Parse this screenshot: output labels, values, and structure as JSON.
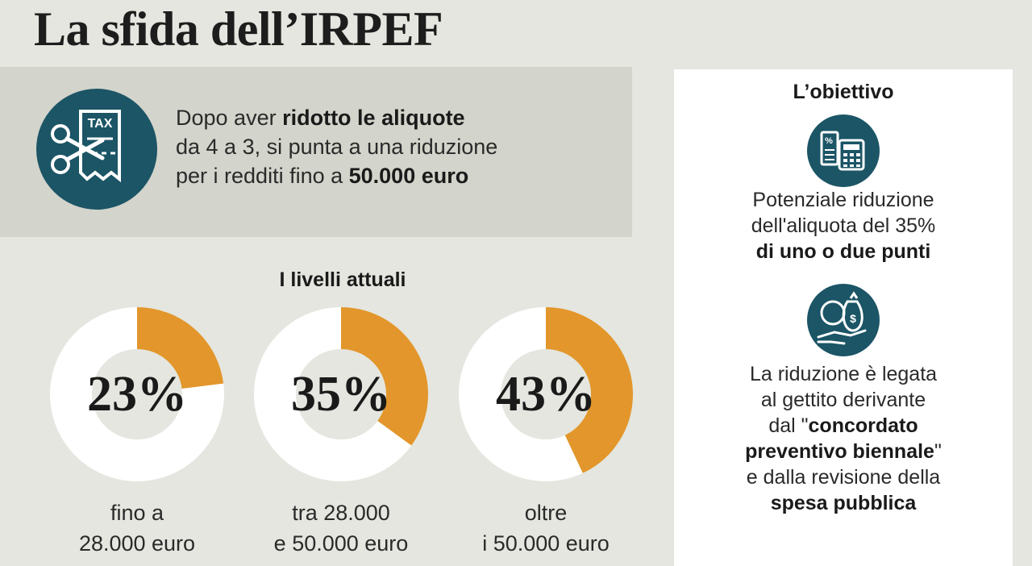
{
  "header": {
    "title": "La sfida dell’IRPEF"
  },
  "intro": {
    "badge_text": "TAX",
    "line1_pre": "Dopo aver ",
    "line1_bold": "ridotto le aliquote",
    "line2": "da 4 a 3, si punta a una riduzione",
    "line3_pre": "per i redditi fino a ",
    "line3_bold": "50.000 euro"
  },
  "levels": {
    "title": "I livelli attuali"
  },
  "chart_data": {
    "type": "pie",
    "title": "I livelli attuali",
    "categories": [
      "fino a 28.000 euro",
      "tra 28.000 e 50.000 euro",
      "oltre i 50.000 euro"
    ],
    "values": [
      23,
      35,
      43
    ],
    "unit": "%",
    "labels": [
      "23%",
      "35%",
      "43%"
    ],
    "caption_lines": [
      [
        "fino a",
        "28.000 euro"
      ],
      [
        "tra 28.000",
        "e 50.000 euro"
      ],
      [
        "oltre",
        "i 50.000 euro"
      ]
    ],
    "colors": {
      "filled": "#e2962b",
      "track": "#ffffff",
      "inner": "#e4e6df"
    }
  },
  "goal": {
    "title": "L’obiettivo",
    "item1": {
      "line1": "Potenziale riduzione",
      "line2": "dell'aliquota del 35%",
      "line3_bold": "di uno o due punti"
    },
    "item2": {
      "line1": "La riduzione è legata",
      "line2": "al gettito derivante",
      "line3_pre": "dal \"",
      "line3_bold": "concordato",
      "line4_bold": "preventivo biennale",
      "line4_post": "\"",
      "line5": "e dalla revisione della",
      "line6_bold": "spesa pubblica"
    }
  }
}
